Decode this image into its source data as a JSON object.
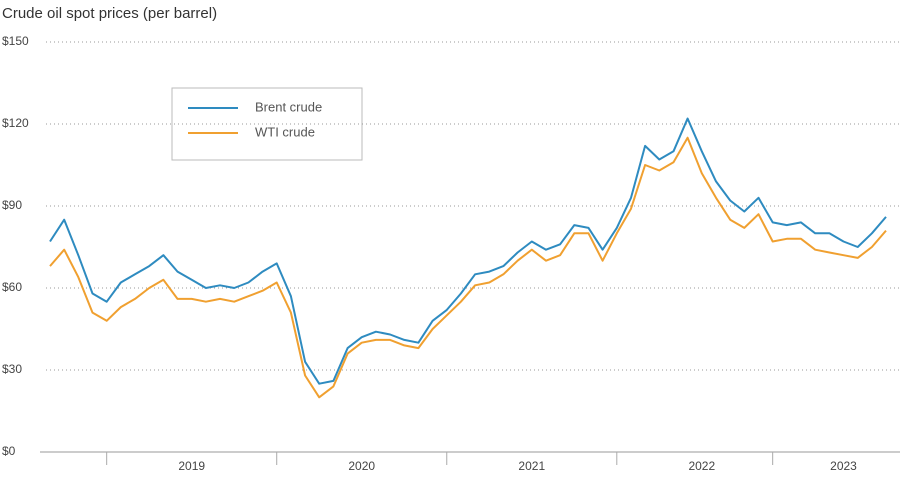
{
  "chart_data": {
    "type": "line",
    "title": "Crude oil spot prices (per barrel)",
    "categories": [
      null,
      null,
      null,
      null,
      null,
      null,
      null,
      null,
      null,
      null,
      "2019",
      null,
      null,
      null,
      null,
      null,
      null,
      null,
      null,
      null,
      null,
      null,
      "2020",
      null,
      null,
      null,
      null,
      null,
      null,
      null,
      null,
      null,
      null,
      null,
      "2021",
      null,
      null,
      null,
      null,
      null,
      null,
      null,
      null,
      null,
      null,
      null,
      "2022",
      null,
      null,
      null,
      null,
      null,
      null,
      null,
      null,
      null,
      "2023",
      null,
      null,
      null
    ],
    "series": [
      {
        "name": "Brent crude",
        "color": "#2e8bc0",
        "values": [
          77,
          85,
          72,
          58,
          55,
          62,
          65,
          68,
          72,
          66,
          63,
          60,
          61,
          60,
          62,
          66,
          69,
          57,
          33,
          25,
          26,
          38,
          42,
          44,
          43,
          41,
          40,
          48,
          52,
          58,
          65,
          66,
          68,
          73,
          77,
          74,
          76,
          83,
          82,
          74,
          82,
          93,
          112,
          107,
          110,
          122,
          110,
          99,
          92,
          88,
          93,
          84,
          83,
          84,
          80,
          80,
          77,
          75,
          80,
          86
        ]
      },
      {
        "name": "WTI crude",
        "color": "#f0a030",
        "values": [
          68,
          74,
          64,
          51,
          48,
          53,
          56,
          60,
          63,
          56,
          56,
          55,
          56,
          55,
          57,
          59,
          62,
          51,
          28,
          20,
          24,
          36,
          40,
          41,
          41,
          39,
          38,
          45,
          50,
          55,
          61,
          62,
          65,
          70,
          74,
          70,
          72,
          80,
          80,
          70,
          80,
          89,
          105,
          103,
          106,
          115,
          102,
          93,
          85,
          82,
          87,
          77,
          78,
          78,
          74,
          73,
          72,
          71,
          75,
          81
        ]
      }
    ],
    "ylim": [
      0,
      150
    ],
    "yticks": [
      {
        "value": 0,
        "label": "$0"
      },
      {
        "value": 30,
        "label": "$30"
      },
      {
        "value": 60,
        "label": "$60"
      },
      {
        "value": 90,
        "label": "$90"
      },
      {
        "value": 120,
        "label": "$120"
      },
      {
        "value": 150,
        "label": "$150"
      }
    ],
    "grid": true
  }
}
